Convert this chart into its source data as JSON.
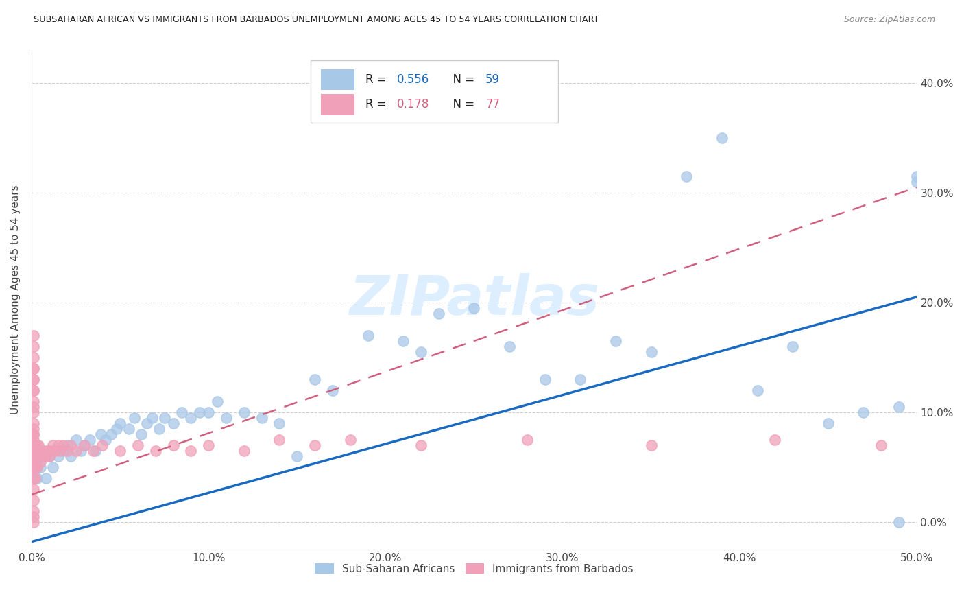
{
  "title": "SUBSAHARAN AFRICAN VS IMMIGRANTS FROM BARBADOS UNEMPLOYMENT AMONG AGES 45 TO 54 YEARS CORRELATION CHART",
  "source": "Source: ZipAtlas.com",
  "ylabel_label": "Unemployment Among Ages 45 to 54 years",
  "scatter_blue_color": "#a8c8e8",
  "scatter_pink_color": "#f0a0b8",
  "line_blue_color": "#1a6bc0",
  "line_pink_color": "#d06080",
  "watermark_color": "#ddeeff",
  "legend_blue_R": "0.556",
  "legend_blue_N": "59",
  "legend_pink_R": "0.178",
  "legend_pink_N": "77",
  "legend_R_color": "#1a6bc0",
  "legend_pink_R_color": "#d06080",
  "legend_N_color": "#1a6bc0",
  "legend_pink_N_color": "#d06080",
  "xlim": [
    0.0,
    0.5
  ],
  "ylim": [
    -0.025,
    0.43
  ],
  "xticks": [
    0.0,
    0.1,
    0.2,
    0.3,
    0.4,
    0.5
  ],
  "yticks": [
    0.0,
    0.1,
    0.2,
    0.3,
    0.4
  ],
  "xtick_labels": [
    "0.0%",
    "10.0%",
    "20.0%",
    "30.0%",
    "40.0%",
    "50.0%"
  ],
  "ytick_labels": [
    "0.0%",
    "10.0%",
    "20.0%",
    "30.0%",
    "40.0%"
  ],
  "blue_line_x0": 0.0,
  "blue_line_y0": -0.018,
  "blue_line_x1": 0.5,
  "blue_line_y1": 0.205,
  "pink_line_x0": 0.0,
  "pink_line_y0": 0.025,
  "pink_line_x1": 0.5,
  "pink_line_y1": 0.305,
  "label_sub_saharan": "Sub-Saharan Africans",
  "label_barbados": "Immigrants from Barbados",
  "blue_x": [
    0.003,
    0.005,
    0.008,
    0.01,
    0.012,
    0.015,
    0.018,
    0.02,
    0.022,
    0.025,
    0.028,
    0.03,
    0.033,
    0.036,
    0.039,
    0.042,
    0.045,
    0.048,
    0.05,
    0.055,
    0.058,
    0.062,
    0.065,
    0.068,
    0.072,
    0.075,
    0.08,
    0.085,
    0.09,
    0.095,
    0.1,
    0.105,
    0.11,
    0.12,
    0.13,
    0.14,
    0.15,
    0.16,
    0.17,
    0.19,
    0.21,
    0.22,
    0.23,
    0.25,
    0.27,
    0.29,
    0.31,
    0.33,
    0.35,
    0.37,
    0.39,
    0.41,
    0.43,
    0.45,
    0.47,
    0.49,
    0.5,
    0.5,
    0.49
  ],
  "blue_y": [
    0.04,
    0.05,
    0.04,
    0.06,
    0.05,
    0.06,
    0.065,
    0.07,
    0.06,
    0.075,
    0.065,
    0.07,
    0.075,
    0.065,
    0.08,
    0.075,
    0.08,
    0.085,
    0.09,
    0.085,
    0.095,
    0.08,
    0.09,
    0.095,
    0.085,
    0.095,
    0.09,
    0.1,
    0.095,
    0.1,
    0.1,
    0.11,
    0.095,
    0.1,
    0.095,
    0.09,
    0.06,
    0.13,
    0.12,
    0.17,
    0.165,
    0.155,
    0.19,
    0.195,
    0.16,
    0.13,
    0.13,
    0.165,
    0.155,
    0.315,
    0.35,
    0.12,
    0.16,
    0.09,
    0.1,
    0.0,
    0.315,
    0.31,
    0.105
  ],
  "pink_x": [
    0.001,
    0.001,
    0.001,
    0.001,
    0.001,
    0.001,
    0.001,
    0.001,
    0.001,
    0.001,
    0.001,
    0.001,
    0.001,
    0.001,
    0.001,
    0.001,
    0.001,
    0.001,
    0.001,
    0.001,
    0.001,
    0.001,
    0.001,
    0.001,
    0.001,
    0.001,
    0.001,
    0.001,
    0.001,
    0.001,
    0.001,
    0.001,
    0.001,
    0.002,
    0.002,
    0.002,
    0.002,
    0.002,
    0.003,
    0.003,
    0.003,
    0.004,
    0.004,
    0.005,
    0.005,
    0.006,
    0.007,
    0.008,
    0.009,
    0.01,
    0.011,
    0.012,
    0.013,
    0.015,
    0.016,
    0.018,
    0.02,
    0.022,
    0.025,
    0.03,
    0.035,
    0.04,
    0.05,
    0.06,
    0.07,
    0.08,
    0.09,
    0.1,
    0.12,
    0.14,
    0.16,
    0.18,
    0.22,
    0.28,
    0.35,
    0.42,
    0.48
  ],
  "pink_y": [
    0.0,
    0.005,
    0.01,
    0.02,
    0.03,
    0.04,
    0.05,
    0.055,
    0.06,
    0.065,
    0.07,
    0.075,
    0.08,
    0.085,
    0.09,
    0.1,
    0.105,
    0.11,
    0.12,
    0.13,
    0.14,
    0.15,
    0.16,
    0.17,
    0.14,
    0.13,
    0.12,
    0.08,
    0.07,
    0.065,
    0.06,
    0.055,
    0.05,
    0.04,
    0.05,
    0.06,
    0.065,
    0.07,
    0.05,
    0.065,
    0.07,
    0.06,
    0.07,
    0.055,
    0.065,
    0.06,
    0.065,
    0.06,
    0.065,
    0.06,
    0.065,
    0.07,
    0.065,
    0.07,
    0.065,
    0.07,
    0.065,
    0.07,
    0.065,
    0.07,
    0.065,
    0.07,
    0.065,
    0.07,
    0.065,
    0.07,
    0.065,
    0.07,
    0.065,
    0.075,
    0.07,
    0.075,
    0.07,
    0.075,
    0.07,
    0.075,
    0.07
  ]
}
